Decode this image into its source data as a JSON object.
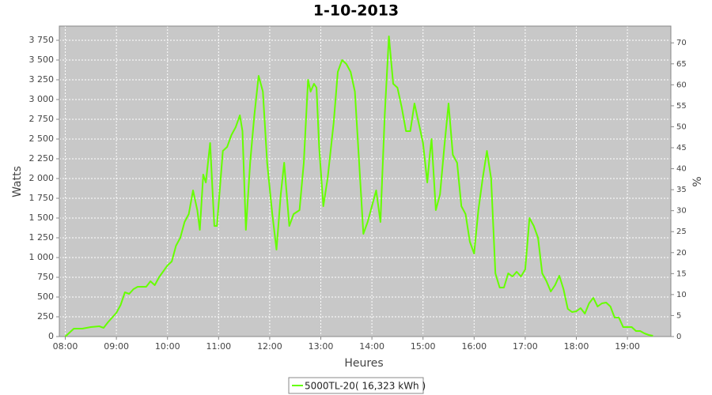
{
  "chart_data": {
    "type": "line",
    "title": "1-10-2013",
    "x_label": "Heures",
    "y_label": "Watts",
    "y2_label": "%",
    "grid": true,
    "xlim": [
      473,
      1191
    ],
    "xticks": [
      {
        "value": 480,
        "label": "08:00"
      },
      {
        "value": 540,
        "label": "09:00"
      },
      {
        "value": 600,
        "label": "10:00"
      },
      {
        "value": 660,
        "label": "11:00"
      },
      {
        "value": 720,
        "label": "12:00"
      },
      {
        "value": 780,
        "label": "13:00"
      },
      {
        "value": 840,
        "label": "14:00"
      },
      {
        "value": 900,
        "label": "15:00"
      },
      {
        "value": 960,
        "label": "16:00"
      },
      {
        "value": 1020,
        "label": "17:00"
      },
      {
        "value": 1080,
        "label": "18:00"
      },
      {
        "value": 1140,
        "label": "19:00"
      }
    ],
    "ylim": [
      0,
      3930
    ],
    "yticks": [
      0,
      250,
      500,
      750,
      {
        "value": 1000,
        "label": "1 000"
      },
      {
        "value": 1250,
        "label": "1 250"
      },
      {
        "value": 1500,
        "label": "1 500"
      },
      {
        "value": 1750,
        "label": "1 750"
      },
      {
        "value": 2000,
        "label": "2 000"
      },
      {
        "value": 2250,
        "label": "2 250"
      },
      {
        "value": 2500,
        "label": "2 500"
      },
      {
        "value": 2750,
        "label": "2 750"
      },
      {
        "value": 3000,
        "label": "3 000"
      },
      {
        "value": 3250,
        "label": "3 250"
      },
      {
        "value": 3500,
        "label": "3 500"
      },
      {
        "value": 3750,
        "label": "3 750"
      }
    ],
    "y2lim": [
      0,
      74
    ],
    "y2ticks": [
      0,
      5,
      10,
      15,
      20,
      25,
      30,
      35,
      40,
      45,
      50,
      55,
      60,
      65,
      70
    ],
    "series": [
      {
        "name": "5000TL-20( 16,323 kWh )",
        "color": "#66ff00",
        "x": [
          480,
          490,
          500,
          510,
          520,
          525,
          530,
          540,
          545,
          550,
          555,
          560,
          565,
          575,
          580,
          585,
          590,
          600,
          605,
          610,
          615,
          620,
          625,
          630,
          635,
          638,
          642,
          645,
          650,
          655,
          658,
          665,
          670,
          675,
          680,
          685,
          688,
          692,
          697,
          702,
          707,
          712,
          717,
          723,
          728,
          733,
          737,
          743,
          748,
          755,
          760,
          765,
          768,
          772,
          775,
          778,
          783,
          788,
          795,
          800,
          805,
          810,
          815,
          820,
          825,
          830,
          835,
          840,
          845,
          850,
          855,
          860,
          865,
          870,
          875,
          880,
          885,
          890,
          895,
          900,
          905,
          908,
          910,
          915,
          920,
          925,
          930,
          935,
          940,
          945,
          950,
          955,
          960,
          965,
          970,
          975,
          980,
          985,
          990,
          995,
          1000,
          1005,
          1010,
          1015,
          1020,
          1025,
          1030,
          1035,
          1040,
          1045,
          1050,
          1055,
          1060,
          1065,
          1070,
          1075,
          1080,
          1085,
          1090,
          1095,
          1100,
          1105,
          1110,
          1115,
          1120,
          1125,
          1130,
          1135,
          1140,
          1145,
          1150,
          1155,
          1160,
          1165,
          1170
        ],
        "values": [
          0,
          100,
          100,
          120,
          130,
          110,
          180,
          300,
          400,
          560,
          540,
          600,
          630,
          630,
          700,
          650,
          750,
          900,
          950,
          1150,
          1250,
          1450,
          1550,
          1850,
          1600,
          1350,
          2050,
          1950,
          2450,
          1400,
          1400,
          2350,
          2400,
          2550,
          2650,
          2800,
          2600,
          1350,
          2200,
          2800,
          3300,
          3100,
          2200,
          1550,
          1100,
          1800,
          2200,
          1400,
          1550,
          1600,
          2200,
          3250,
          3100,
          3200,
          3150,
          2400,
          1650,
          2000,
          2700,
          3350,
          3500,
          3450,
          3350,
          3100,
          2200,
          1300,
          1450,
          1650,
          1850,
          1450,
          2800,
          3800,
          3200,
          3150,
          2900,
          2600,
          2600,
          2950,
          2700,
          2450,
          1950,
          2300,
          2500,
          1600,
          1800,
          2400,
          2950,
          2300,
          2200,
          1650,
          1550,
          1200,
          1050,
          1600,
          2000,
          2350,
          2000,
          800,
          620,
          620,
          800,
          760,
          820,
          760,
          850,
          1500,
          1400,
          1250,
          800,
          700,
          570,
          650,
          770,
          600,
          350,
          310,
          320,
          360,
          290,
          420,
          490,
          380,
          420,
          430,
          380,
          240,
          240,
          120,
          120,
          120,
          70,
          70,
          40,
          20,
          10
        ]
      }
    ]
  }
}
